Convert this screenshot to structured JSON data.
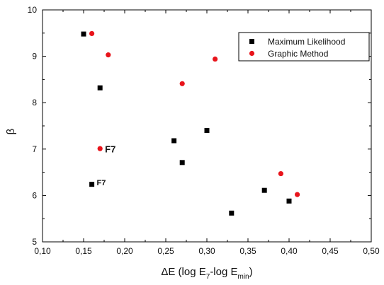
{
  "chart_data": {
    "type": "scatter",
    "xlabel_parts": [
      "ΔE (log E",
      "7",
      "-log E",
      "min",
      ")"
    ],
    "ylabel": "β",
    "xlim": [
      0.1,
      0.5
    ],
    "ylim": [
      5,
      10
    ],
    "x_ticks": [
      "0,10",
      "0,15",
      "0,20",
      "0,25",
      "0,30",
      "0,35",
      "0,40",
      "0,45",
      "0,50"
    ],
    "y_ticks": [
      "5",
      "6",
      "7",
      "8",
      "9",
      "10"
    ],
    "grid": false,
    "legend_position": "top-right",
    "series": [
      {
        "name": "Maximum Likelihood",
        "marker": "square",
        "color": "#000000",
        "points": [
          {
            "x": 0.15,
            "y": 9.48
          },
          {
            "x": 0.17,
            "y": 8.32
          },
          {
            "x": 0.26,
            "y": 7.18
          },
          {
            "x": 0.3,
            "y": 7.4
          },
          {
            "x": 0.27,
            "y": 6.71
          },
          {
            "x": 0.16,
            "y": 6.24
          },
          {
            "x": 0.37,
            "y": 6.11
          },
          {
            "x": 0.4,
            "y": 5.88
          },
          {
            "x": 0.33,
            "y": 5.62
          }
        ]
      },
      {
        "name": "Graphic Method",
        "marker": "circle",
        "color": "#e8141b",
        "points": [
          {
            "x": 0.16,
            "y": 9.49
          },
          {
            "x": 0.18,
            "y": 9.03
          },
          {
            "x": 0.31,
            "y": 8.94
          },
          {
            "x": 0.27,
            "y": 8.41
          },
          {
            "x": 0.17,
            "y": 7.01
          },
          {
            "x": 0.39,
            "y": 6.47
          },
          {
            "x": 0.41,
            "y": 6.02
          }
        ]
      }
    ],
    "annotations": [
      {
        "text": "F7",
        "x": 0.176,
        "y": 6.93,
        "size": "large"
      },
      {
        "text": "F7",
        "x": 0.166,
        "y": 6.22,
        "size": "small"
      }
    ]
  }
}
